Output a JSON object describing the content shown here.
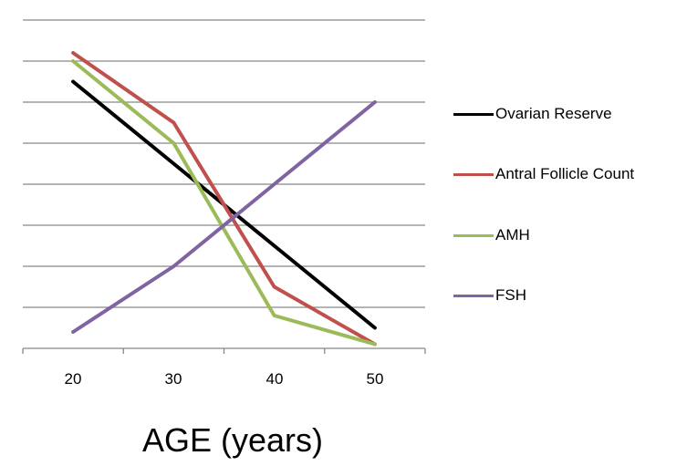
{
  "chart_data": {
    "type": "line",
    "title": "",
    "xlabel": "AGE (years)",
    "ylabel": "",
    "categories": [
      "20",
      "30",
      "40",
      "50"
    ],
    "ylim": [
      0,
      8
    ],
    "y_tick_labels_shown": false,
    "grid": true,
    "legend_position": "right",
    "series": [
      {
        "name": "Ovarian Reserve",
        "color": "#000000",
        "values": [
          6.5,
          4.5,
          2.5,
          0.5
        ]
      },
      {
        "name": "Antral Follicle Count",
        "color": "#c0504d",
        "values": [
          7.2,
          5.5,
          1.5,
          0.1
        ]
      },
      {
        "name": "AMH",
        "color": "#9bbb59",
        "values": [
          7.0,
          5.0,
          0.8,
          0.1
        ]
      },
      {
        "name": "FSH",
        "color": "#8064a2",
        "values": [
          0.4,
          2.0,
          4.0,
          6.0
        ]
      }
    ]
  },
  "axis": {
    "x_ticks": [
      "20",
      "30",
      "40",
      "50"
    ],
    "x_title": "AGE (years)"
  },
  "legend": {
    "items": [
      {
        "label": "Ovarian Reserve",
        "color": "#000000"
      },
      {
        "label": "Antral Follicle Count",
        "color": "#c0504d"
      },
      {
        "label": "AMH",
        "color": "#9bbb59"
      },
      {
        "label": "FSH",
        "color": "#8064a2"
      }
    ]
  }
}
